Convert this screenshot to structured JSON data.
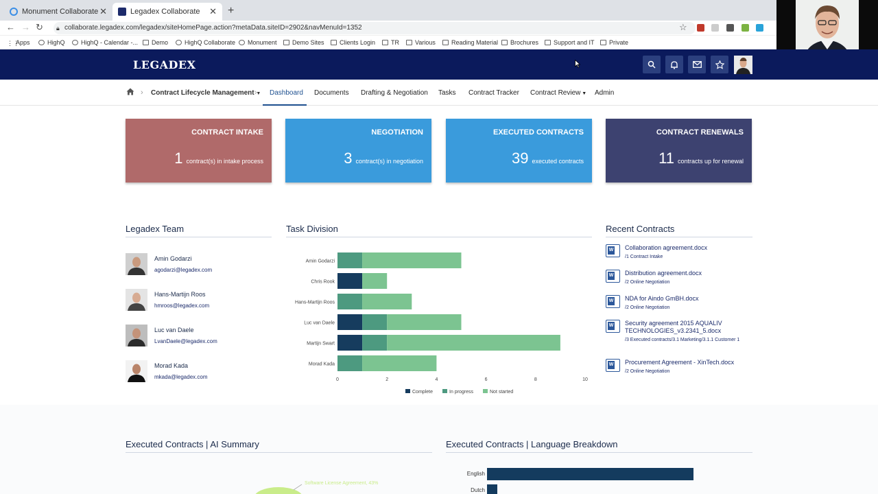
{
  "browser": {
    "tabs": [
      {
        "title": "Monument Collaborate"
      },
      {
        "title": "Legadex Collaborate"
      }
    ],
    "url": "collaborate.legadex.com/legadex/siteHomePage.action?metaData.siteID=2902&navMenuId=1352",
    "bookmarks": [
      "Apps",
      "HighQ",
      "HighQ - Calendar -...",
      "Demo",
      "HighQ Collaborate",
      "Monument",
      "Demo Sites",
      "Clients Login",
      "TR",
      "Various",
      "Reading Material",
      "Brochures",
      "Support and IT",
      "Private"
    ]
  },
  "header": {
    "logo": "LEGADEX"
  },
  "nav": {
    "items": [
      "Contract Lifecycle Management",
      "Dashboard",
      "Documents",
      "Drafting & Negotiation",
      "Tasks",
      "Contract Tracker",
      "Contract Review",
      "Admin"
    ]
  },
  "cards": [
    {
      "title": "CONTRACT INTAKE",
      "count": "1",
      "desc": "contract(s) in intake process",
      "color": "#b06a6a"
    },
    {
      "title": "NEGOTIATION",
      "count": "3",
      "desc": "contract(s) in negotiation",
      "color": "#3a9bdc"
    },
    {
      "title": "EXECUTED CONTRACTS",
      "count": "39",
      "desc": "executed contracts",
      "color": "#3a9bdc"
    },
    {
      "title": "CONTRACT RENEWALS",
      "count": "11",
      "desc": "contracts up for renewal",
      "color": "#3d4270"
    }
  ],
  "team": {
    "heading": "Legadex Team",
    "members": [
      {
        "name": "Amin Godarzi",
        "email": "agodarzi@legadex.com"
      },
      {
        "name": "Hans-Martijn Roos",
        "email": "hmroos@legadex.com"
      },
      {
        "name": "Luc van Daele",
        "email": "LvanDaele@legadex.com"
      },
      {
        "name": "Morad Kada",
        "email": "mkada@legadex.com"
      }
    ]
  },
  "task_division": {
    "heading": "Task Division"
  },
  "chart_data": [
    {
      "type": "bar",
      "orientation": "horizontal",
      "stacked": true,
      "categories": [
        "Amin Godarzi",
        "Chris Rook",
        "Hans-Martijn Roos",
        "Luc van Daele",
        "Martijn Swart",
        "Morad Kada"
      ],
      "series": [
        {
          "name": "Complete",
          "values": [
            0,
            1,
            0,
            1,
            1,
            0
          ],
          "color": "#163c5e"
        },
        {
          "name": "In progress",
          "values": [
            1,
            0,
            1,
            1,
            1,
            1
          ],
          "color": "#4d9a80"
        },
        {
          "name": "Not started",
          "values": [
            4,
            1,
            2,
            3,
            7,
            3
          ],
          "color": "#7cc491"
        }
      ],
      "xlim": [
        0,
        10
      ],
      "xticks": [
        0,
        2,
        4,
        6,
        8,
        10
      ],
      "legend": "bottom"
    }
  ],
  "recent": {
    "heading": "Recent Contracts",
    "items": [
      {
        "name": "Collaboration agreement.docx",
        "path": "/1 Contract Intake"
      },
      {
        "name": "Distribution agreement.docx",
        "path": "/2 Online Negotiation"
      },
      {
        "name": "NDA for Aindo GmBH.docx",
        "path": "/2 Online Negotiation"
      },
      {
        "name": "Security agreement 2015 AQUALIV TECHNOLOGIES_v3.2341_5.docx",
        "path": "/3 Executed contracts/3.1 Marketing/3.1.1 Customer 1"
      },
      {
        "name": "Procurement Agreement - XinTech.docx",
        "path": "/2 Online Negotiation"
      }
    ]
  },
  "bottom": {
    "ai_heading": "Executed Contracts | AI Summary",
    "ai_slice_label": "Software License Agreement, 43%",
    "lang_heading": "Executed Contracts | Language Breakdown",
    "languages": [
      {
        "name": "English",
        "value": 1.0
      },
      {
        "name": "Dutch",
        "value": 0.05
      }
    ]
  }
}
